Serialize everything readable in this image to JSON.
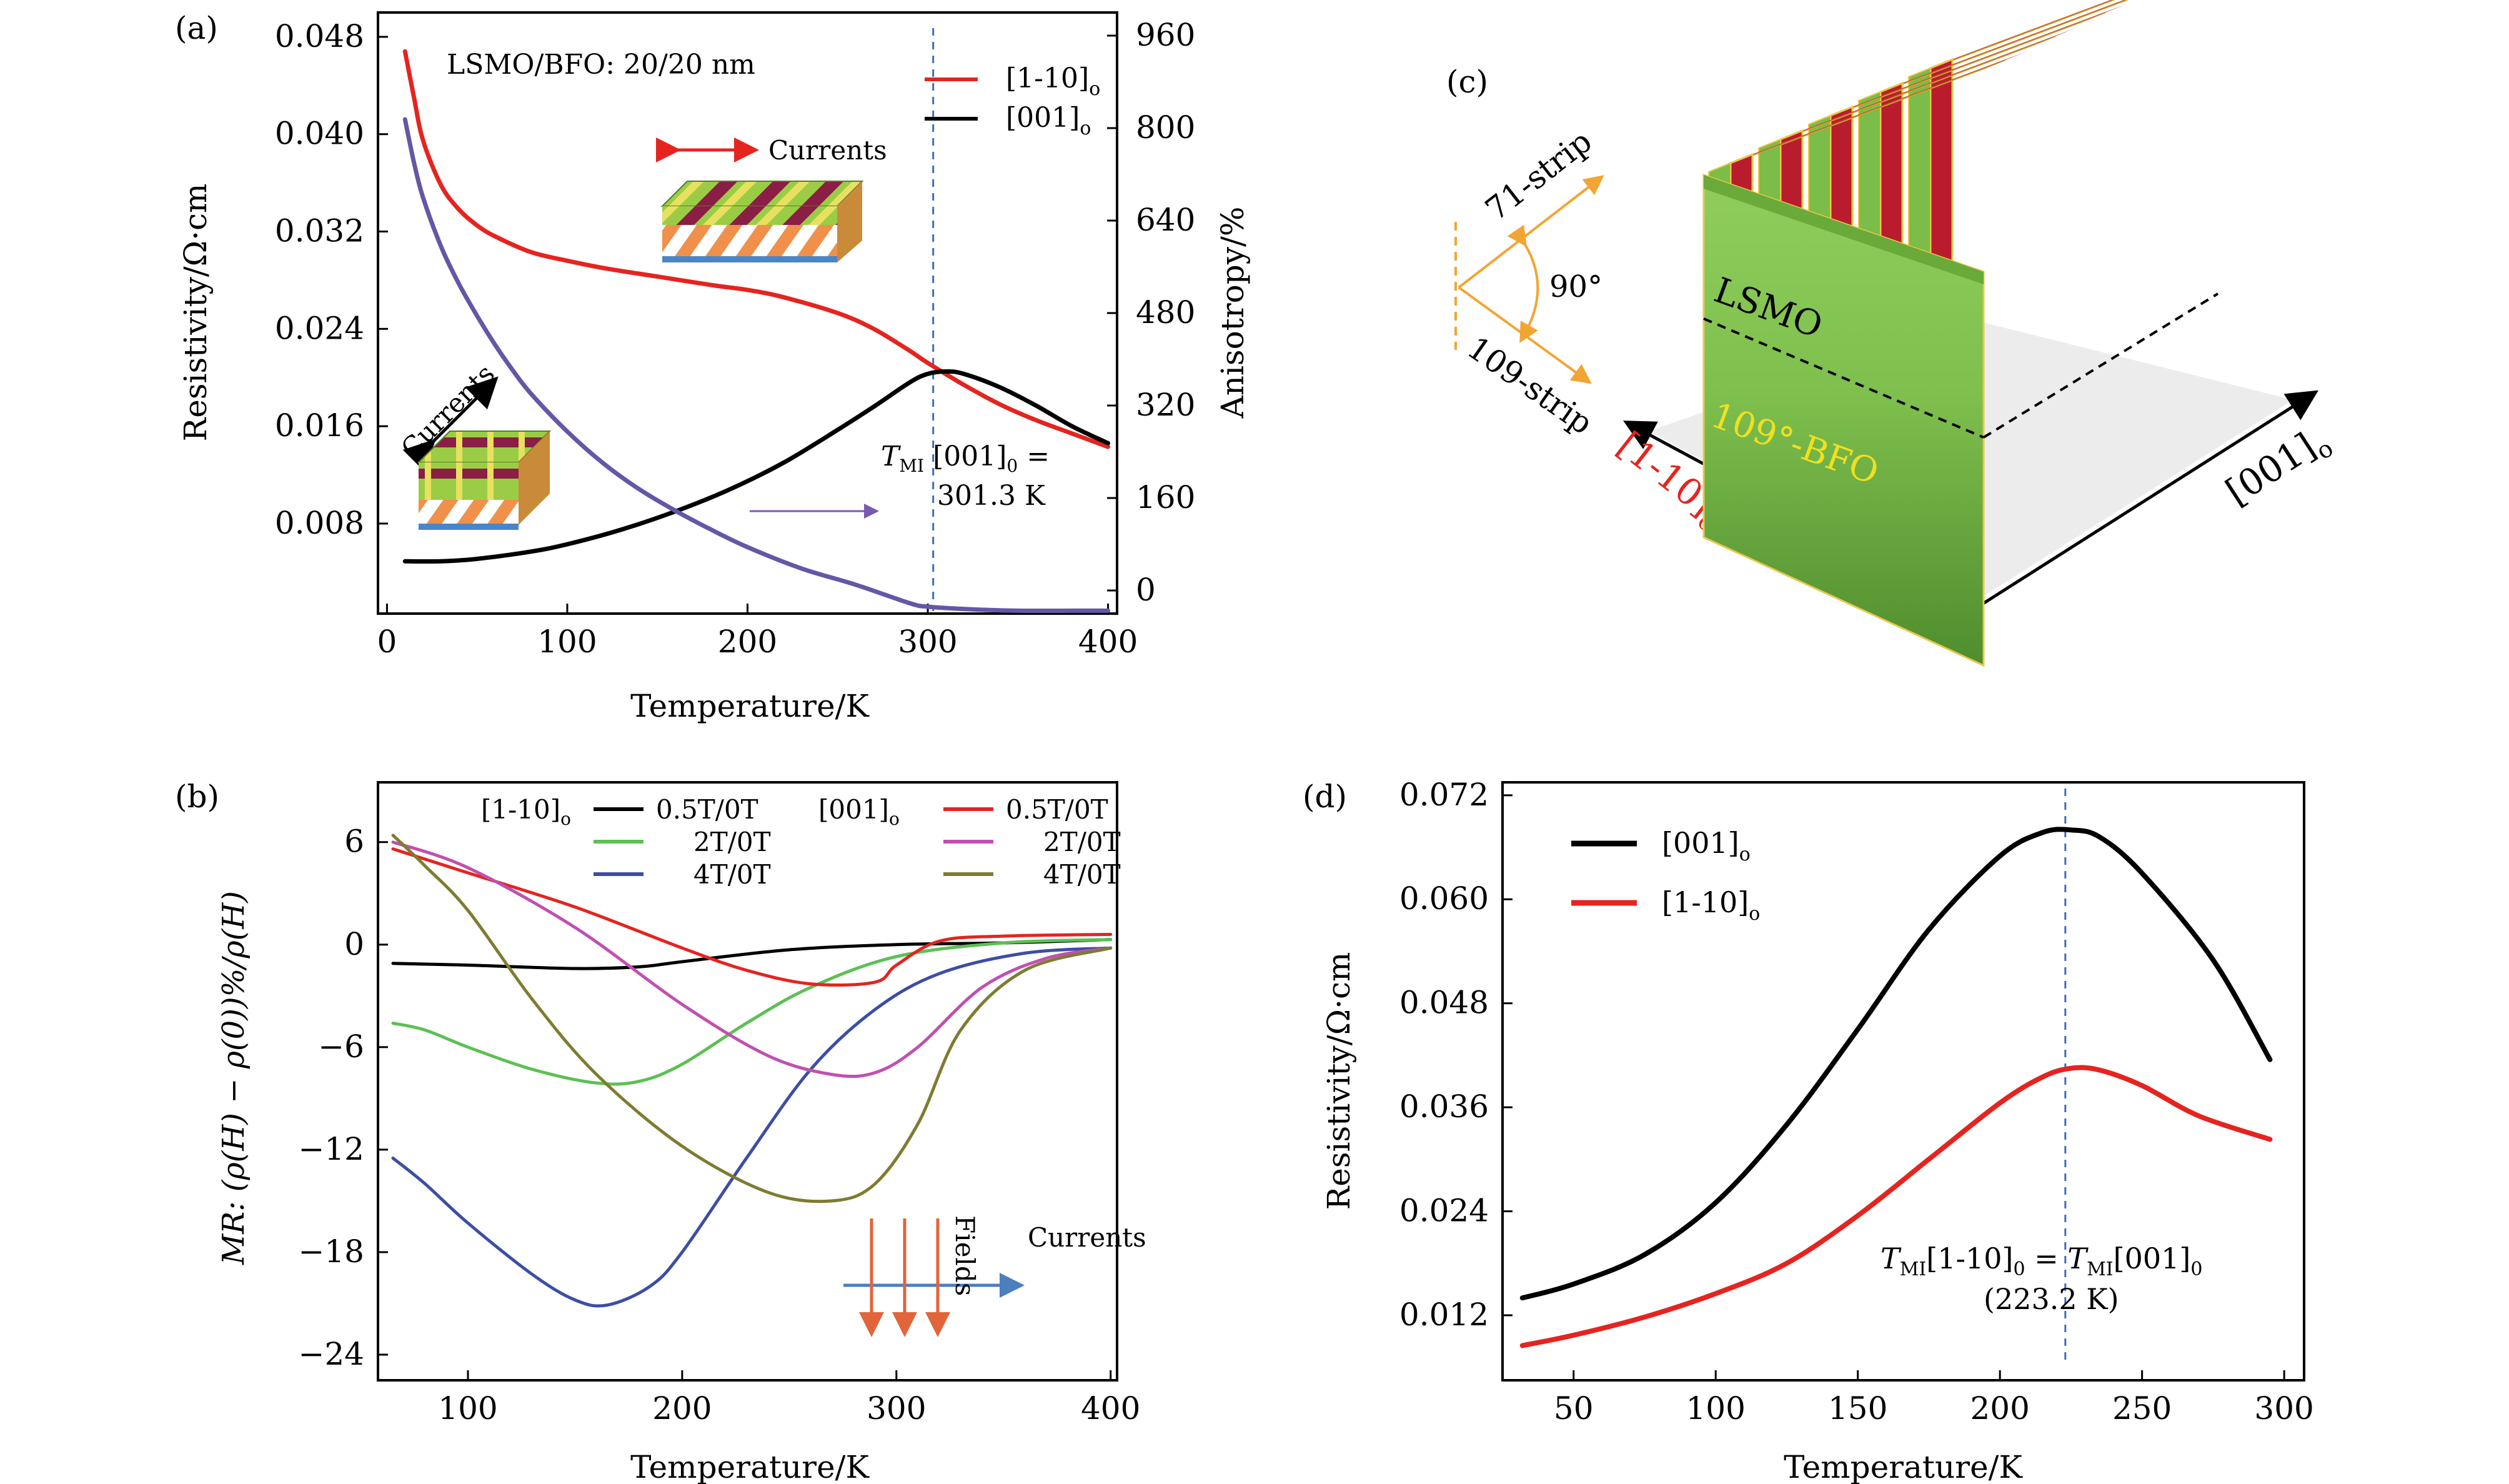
{
  "chart_data": [
    {
      "panel": "(a)",
      "type": "line",
      "annotation_top": "LSMO/BFO: 20/20 nm",
      "xlabel": "Temperature/K",
      "ylabel": "Resistivity/Ω·cm",
      "y2label": "Anisotropy/%",
      "xlim": [
        -5,
        405
      ],
      "ylim": [
        0.0006,
        0.05
      ],
      "y2lim": [
        -40,
        1000
      ],
      "xticks": [
        "0",
        "100",
        "200",
        "300",
        "400"
      ],
      "xtick_values": [
        0,
        100,
        200,
        300,
        400
      ],
      "yticks": [
        "0.008",
        "0.016",
        "0.024",
        "0.032",
        "0.040",
        "0.048"
      ],
      "ytick_values": [
        0.008,
        0.016,
        0.024,
        0.032,
        0.04,
        0.048
      ],
      "y2ticks": [
        "0",
        "160",
        "320",
        "480",
        "640",
        "800",
        "960"
      ],
      "y2tick_values": [
        0,
        160,
        320,
        480,
        640,
        800,
        960
      ],
      "vline_x": 303,
      "inset_label_1": "Currents",
      "inset_label_2": "Currents",
      "tmi_text": "T",
      "tmi_sub": "MI",
      "tmi_rest": " [001]",
      "tmi_sub0": "0",
      "tmi_eq": " =",
      "tmi_value": "301.3 K",
      "legend": [
        {
          "main": "[1-10]",
          "sub": "o",
          "color": "#e52420"
        },
        {
          "main": "[001]",
          "sub": "o",
          "color": "#000000"
        }
      ],
      "series": [
        {
          "name": "[1-10]o",
          "axis": "left",
          "color": "#e52420",
          "x": [
            10,
            15,
            20,
            30,
            40,
            50,
            60,
            80,
            100,
            120,
            150,
            180,
            200,
            220,
            250,
            270,
            290,
            300,
            320,
            340,
            360,
            380,
            400
          ],
          "y": [
            0.0468,
            0.043,
            0.0395,
            0.0358,
            0.0338,
            0.0325,
            0.0316,
            0.0303,
            0.0296,
            0.029,
            0.0283,
            0.0276,
            0.0272,
            0.0266,
            0.0253,
            0.024,
            0.0222,
            0.0212,
            0.0194,
            0.0178,
            0.0165,
            0.0154,
            0.0143
          ]
        },
        {
          "name": "[001]o",
          "axis": "left",
          "color": "#000000",
          "x": [
            10,
            30,
            50,
            80,
            100,
            130,
            160,
            190,
            220,
            250,
            270,
            290,
            300,
            310,
            320,
            340,
            360,
            380,
            400
          ],
          "y": [
            0.0049,
            0.0049,
            0.0051,
            0.0057,
            0.0063,
            0.0075,
            0.009,
            0.0108,
            0.013,
            0.0157,
            0.0176,
            0.0196,
            0.0203,
            0.0205,
            0.0203,
            0.0192,
            0.0177,
            0.016,
            0.0146
          ]
        },
        {
          "name": "Anisotropy",
          "axis": "right",
          "color": "#6656a6",
          "x": [
            10,
            15,
            20,
            30,
            40,
            50,
            60,
            70,
            80,
            100,
            120,
            140,
            160,
            180,
            200,
            230,
            260,
            290,
            300,
            320,
            350,
            380,
            400
          ],
          "y": [
            815,
            740,
            680,
            595,
            530,
            475,
            425,
            380,
            340,
            275,
            220,
            175,
            138,
            105,
            75,
            38,
            10,
            -22,
            -28,
            -32,
            -35,
            -35,
            -35
          ]
        }
      ]
    },
    {
      "panel": "(b)",
      "type": "line",
      "xlabel": "Temperature/K",
      "ylabel": "MR: (ρ(H) − ρ(0))%/ρ(H)",
      "xlim": [
        58,
        403
      ],
      "ylim": [
        -25.5,
        9.5
      ],
      "xticks": [
        "100",
        "200",
        "300",
        "400"
      ],
      "xtick_values": [
        100,
        200,
        300,
        400
      ],
      "yticks": [
        "6",
        "0",
        "−6",
        "−12",
        "−18",
        "−24"
      ],
      "ytick_values": [
        6,
        0,
        -6,
        -12,
        -18,
        -24
      ],
      "fields_label": "Fields",
      "currents_label": "Currents",
      "legend_groups": [
        {
          "main": "[1-10]",
          "sub": "o"
        },
        {
          "main": "[001]",
          "sub": "o"
        }
      ],
      "series": [
        {
          "name": "0.5T/0T",
          "group": "[1-10]o",
          "color": "#000000",
          "x": [
            65,
            100,
            150,
            180,
            200,
            250,
            300,
            350,
            400
          ],
          "y": [
            -1.1,
            -1.2,
            -1.4,
            -1.3,
            -1.0,
            -0.3,
            0.0,
            0.1,
            0.3
          ]
        },
        {
          "name": "2T/0T",
          "group": "[1-10]o",
          "color": "#5cc054",
          "x": [
            65,
            80,
            100,
            130,
            160,
            180,
            200,
            230,
            260,
            300,
            350,
            400
          ],
          "y": [
            -4.6,
            -5.0,
            -6.0,
            -7.3,
            -8.1,
            -8.0,
            -7.0,
            -4.6,
            -2.5,
            -0.7,
            0.1,
            0.3
          ]
        },
        {
          "name": "4T/0T",
          "group": "[1-10]o",
          "color": "#3c4ea3",
          "x": [
            65,
            80,
            100,
            130,
            150,
            165,
            185,
            200,
            230,
            260,
            290,
            320,
            360,
            400
          ],
          "y": [
            -12.5,
            -14.0,
            -16.3,
            -19.3,
            -20.8,
            -21.1,
            -20.0,
            -18.0,
            -12.5,
            -7.3,
            -3.8,
            -1.7,
            -0.5,
            -0.2
          ]
        },
        {
          "name": "0.5T/0T",
          "group": "[001]o",
          "color": "#e52420",
          "x": [
            65,
            100,
            150,
            200,
            230,
            260,
            290,
            300,
            320,
            350,
            400
          ],
          "y": [
            5.6,
            4.2,
            2.2,
            -0.2,
            -1.5,
            -2.3,
            -2.2,
            -1.2,
            0.2,
            0.5,
            0.6
          ]
        },
        {
          "name": "2T/0T",
          "group": "[001]o",
          "color": "#c050b0",
          "x": [
            65,
            100,
            150,
            200,
            240,
            270,
            290,
            310,
            340,
            370,
            400
          ],
          "y": [
            6.0,
            4.5,
            1.0,
            -3.5,
            -6.5,
            -7.6,
            -7.5,
            -6.0,
            -2.5,
            -0.8,
            -0.2
          ]
        },
        {
          "name": "4T/0T",
          "group": "[001]o",
          "color": "#7e7c30",
          "x": [
            65,
            80,
            100,
            130,
            160,
            200,
            240,
            270,
            290,
            310,
            330,
            360,
            400
          ],
          "y": [
            6.4,
            4.6,
            2.0,
            -3.2,
            -7.6,
            -11.8,
            -14.5,
            -15.0,
            -14.0,
            -10.5,
            -5.0,
            -1.5,
            -0.2
          ]
        }
      ]
    },
    {
      "panel": "(d)",
      "type": "line",
      "xlabel": "Temperature/K",
      "ylabel": "Resistivity/Ω·cm",
      "xlim": [
        25,
        307
      ],
      "ylim": [
        0.0045,
        0.0735
      ],
      "xticks": [
        "50",
        "100",
        "150",
        "200",
        "250",
        "300"
      ],
      "xtick_values": [
        50,
        100,
        150,
        200,
        250,
        300
      ],
      "yticks": [
        "0.012",
        "0.024",
        "0.036",
        "0.048",
        "0.060",
        "0.072"
      ],
      "ytick_values": [
        0.012,
        0.024,
        0.036,
        0.048,
        0.06,
        0.072
      ],
      "vline_x": 223,
      "tmi_line1": "T",
      "tmi_sub_a": "MI",
      "tmi_rest_a": "[1-10]",
      "tmi_sub0_a": "0",
      "tmi_eq": " = ",
      "tmi_t2": "T",
      "tmi_sub_b": "MI",
      "tmi_rest_b": "[001]",
      "tmi_sub0_b": "0",
      "tmi_line2": "(223.2 K)",
      "legend": [
        {
          "main": "[001]",
          "sub": "o",
          "color": "#000000"
        },
        {
          "main": "[1-10]",
          "sub": "o",
          "color": "#e52420"
        }
      ],
      "series": [
        {
          "name": "[001]o",
          "color": "#000000",
          "x": [
            32,
            50,
            75,
            100,
            125,
            150,
            175,
            200,
            215,
            225,
            235,
            250,
            275,
            295
          ],
          "y": [
            0.014,
            0.0156,
            0.019,
            0.025,
            0.034,
            0.045,
            0.0565,
            0.065,
            0.0677,
            0.068,
            0.0672,
            0.063,
            0.053,
            0.0415
          ]
        },
        {
          "name": "[1-10]o",
          "color": "#e52420",
          "x": [
            32,
            50,
            75,
            100,
            125,
            150,
            175,
            200,
            215,
            225,
            235,
            250,
            270,
            295
          ],
          "y": [
            0.0085,
            0.0097,
            0.0118,
            0.0145,
            0.018,
            0.0235,
            0.03,
            0.0365,
            0.0395,
            0.0405,
            0.0403,
            0.0385,
            0.035,
            0.0323
          ]
        }
      ]
    }
  ],
  "panels": {
    "a": "(a)",
    "b": "(b)",
    "c": "(c)",
    "d": "(d)"
  },
  "diagram_c": {
    "lsmo": "LSMO",
    "bfo": "109°-BFO",
    "strip71": "71-strip",
    "strip109": "109-strip",
    "angle": "90°",
    "axis_left_main": "[1-10]",
    "axis_left_sub": "o",
    "axis_right_main": "[001]",
    "axis_right_sub": "o"
  }
}
